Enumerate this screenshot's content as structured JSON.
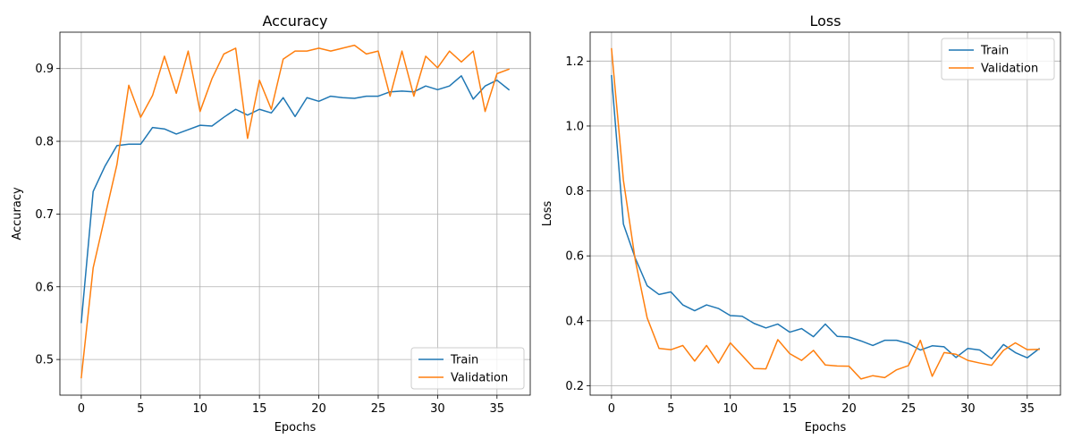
{
  "chart_data": [
    {
      "type": "line",
      "title": "Accuracy",
      "xlabel": "Epochs",
      "ylabel": "Accuracy",
      "xlim": [
        -1.8,
        37.8
      ],
      "ylim": [
        0.451,
        0.95
      ],
      "xticks": [
        0,
        5,
        10,
        15,
        20,
        25,
        30,
        35
      ],
      "yticks": [
        0.5,
        0.6,
        0.7,
        0.8,
        0.9
      ],
      "ytick_labels": [
        "0.5",
        "0.6",
        "0.7",
        "0.8",
        "0.9"
      ],
      "grid": true,
      "legend_position": "lower-right",
      "x": [
        0,
        1,
        2,
        3,
        4,
        5,
        6,
        7,
        8,
        9,
        10,
        11,
        12,
        13,
        14,
        15,
        16,
        17,
        18,
        19,
        20,
        21,
        22,
        23,
        24,
        25,
        26,
        27,
        28,
        29,
        30,
        31,
        32,
        33,
        34,
        35,
        36
      ],
      "series": [
        {
          "name": "Train",
          "color": "#1f77b4",
          "values": [
            0.551,
            0.731,
            0.766,
            0.794,
            0.796,
            0.796,
            0.819,
            0.817,
            0.81,
            0.816,
            0.822,
            0.821,
            0.833,
            0.844,
            0.836,
            0.844,
            0.839,
            0.86,
            0.834,
            0.86,
            0.855,
            0.862,
            0.86,
            0.859,
            0.862,
            0.862,
            0.868,
            0.869,
            0.868,
            0.876,
            0.871,
            0.876,
            0.89,
            0.858,
            0.876,
            0.884,
            0.871
          ]
        },
        {
          "name": "Validation",
          "color": "#ff7f0e",
          "values": [
            0.475,
            0.626,
            0.697,
            0.768,
            0.877,
            0.833,
            0.863,
            0.917,
            0.866,
            0.924,
            0.841,
            0.886,
            0.92,
            0.928,
            0.804,
            0.884,
            0.844,
            0.913,
            0.924,
            0.924,
            0.928,
            0.924,
            0.928,
            0.932,
            0.92,
            0.924,
            0.862,
            0.924,
            0.862,
            0.917,
            0.901,
            0.924,
            0.909,
            0.924,
            0.841,
            0.893,
            0.899
          ]
        }
      ]
    },
    {
      "type": "line",
      "title": "Loss",
      "xlabel": "Epochs",
      "ylabel": "Loss",
      "xlim": [
        -1.8,
        37.8
      ],
      "ylim": [
        0.171,
        1.289
      ],
      "xticks": [
        0,
        5,
        10,
        15,
        20,
        25,
        30,
        35
      ],
      "yticks": [
        0.2,
        0.4,
        0.6,
        0.8,
        1.0,
        1.2
      ],
      "ytick_labels": [
        "0.2",
        "0.4",
        "0.6",
        "0.8",
        "1.0",
        "1.2"
      ],
      "grid": true,
      "legend_position": "upper-right",
      "x": [
        0,
        1,
        2,
        3,
        4,
        5,
        6,
        7,
        8,
        9,
        10,
        11,
        12,
        13,
        14,
        15,
        16,
        17,
        18,
        19,
        20,
        21,
        22,
        23,
        24,
        25,
        26,
        27,
        28,
        29,
        30,
        31,
        32,
        33,
        34,
        35,
        36
      ],
      "series": [
        {
          "name": "Train",
          "color": "#1f77b4",
          "values": [
            1.155,
            0.698,
            0.593,
            0.508,
            0.481,
            0.489,
            0.449,
            0.431,
            0.449,
            0.438,
            0.416,
            0.414,
            0.392,
            0.378,
            0.39,
            0.365,
            0.376,
            0.351,
            0.39,
            0.352,
            0.35,
            0.338,
            0.324,
            0.34,
            0.34,
            0.33,
            0.31,
            0.323,
            0.32,
            0.287,
            0.315,
            0.31,
            0.283,
            0.327,
            0.302,
            0.286,
            0.314
          ]
        },
        {
          "name": "Validation",
          "color": "#ff7f0e",
          "values": [
            1.238,
            0.833,
            0.587,
            0.409,
            0.315,
            0.311,
            0.324,
            0.276,
            0.324,
            0.27,
            0.332,
            0.293,
            0.253,
            0.252,
            0.342,
            0.299,
            0.278,
            0.309,
            0.264,
            0.261,
            0.26,
            0.221,
            0.231,
            0.225,
            0.249,
            0.262,
            0.34,
            0.229,
            0.302,
            0.297,
            0.278,
            0.27,
            0.263,
            0.309,
            0.332,
            0.311,
            0.312
          ]
        }
      ]
    }
  ]
}
